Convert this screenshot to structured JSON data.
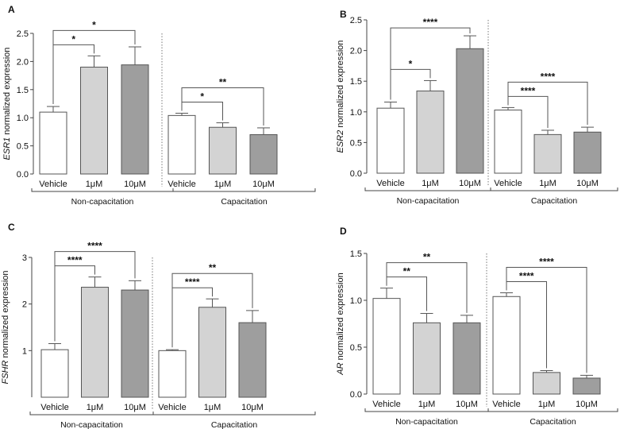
{
  "chart_data": [
    {
      "panel_label": "A",
      "type": "bar",
      "ylabel_gene": "ESR1",
      "ylabel_rest": " normalized expression",
      "yticks": [
        "0.0",
        "0.5",
        "1.0",
        "1.5",
        "2.0",
        "2.5"
      ],
      "ylim": [
        0,
        2.5
      ],
      "categories": [
        "Vehicle",
        "1μM",
        "10μM",
        "Vehicle",
        "1μM",
        "10μM"
      ],
      "values": [
        1.1,
        1.9,
        1.94,
        1.04,
        0.83,
        0.7
      ],
      "errors": [
        0.1,
        0.2,
        0.32,
        0.04,
        0.08,
        0.12
      ],
      "groups": [
        {
          "label": "Non-capacitation",
          "start": 0,
          "end": 2
        },
        {
          "label": "Capacitation",
          "start": 3,
          "end": 5
        }
      ],
      "significance": [
        {
          "from": 0,
          "to": 1,
          "label": "*"
        },
        {
          "from": 0,
          "to": 2,
          "label": "*"
        },
        {
          "from": 3,
          "to": 4,
          "label": "*"
        },
        {
          "from": 3,
          "to": 5,
          "label": "**"
        }
      ]
    },
    {
      "panel_label": "B",
      "type": "bar",
      "ylabel_gene": "ESR2",
      "ylabel_rest": " normalized expression",
      "yticks": [
        "0.0",
        "0.5",
        "1.0",
        "1.5",
        "2.0",
        "2.5"
      ],
      "ylim": [
        0,
        2.5
      ],
      "categories": [
        "Vehicle",
        "1μM",
        "10μM",
        "Vehicle",
        "1μM",
        "10μM"
      ],
      "values": [
        1.06,
        1.34,
        2.03,
        1.03,
        0.63,
        0.67
      ],
      "errors": [
        0.1,
        0.17,
        0.21,
        0.04,
        0.07,
        0.08
      ],
      "groups": [
        {
          "label": "Non-capacitation",
          "start": 0,
          "end": 2
        },
        {
          "label": "Capacitation",
          "start": 3,
          "end": 5
        }
      ],
      "significance": [
        {
          "from": 0,
          "to": 1,
          "label": "*"
        },
        {
          "from": 0,
          "to": 2,
          "label": "****"
        },
        {
          "from": 3,
          "to": 4,
          "label": "****"
        },
        {
          "from": 3,
          "to": 5,
          "label": "****"
        }
      ]
    },
    {
      "panel_label": "C",
      "type": "bar",
      "ylabel_gene": "FSHR",
      "ylabel_rest": " normalized expression",
      "yticks": [
        "1",
        "2",
        "3"
      ],
      "ytick_values": [
        1,
        2,
        3
      ],
      "ylim": [
        0,
        3
      ],
      "categories": [
        "Vehicle",
        "1μM",
        "10μM",
        "Vehicle",
        "1μM",
        "10μM"
      ],
      "values": [
        1.02,
        2.36,
        2.3,
        1.0,
        1.93,
        1.6
      ],
      "errors": [
        0.13,
        0.22,
        0.2,
        0.02,
        0.18,
        0.26
      ],
      "groups": [
        {
          "label": "Non-capacitation",
          "start": 0,
          "end": 2
        },
        {
          "label": "Capacitation",
          "start": 3,
          "end": 5
        }
      ],
      "significance": [
        {
          "from": 0,
          "to": 1,
          "label": "****"
        },
        {
          "from": 0,
          "to": 2,
          "label": "****"
        },
        {
          "from": 3,
          "to": 4,
          "label": "****"
        },
        {
          "from": 3,
          "to": 5,
          "label": "**"
        }
      ]
    },
    {
      "panel_label": "D",
      "type": "bar",
      "ylabel_gene": "AR",
      "ylabel_rest": " normalized expression",
      "yticks": [
        "0.0",
        "0.5",
        "1.0",
        "1.5"
      ],
      "ylim": [
        0,
        1.5
      ],
      "categories": [
        "Vehicle",
        "1μM",
        "10μM",
        "Vehicle",
        "1μM",
        "10μM"
      ],
      "values": [
        1.02,
        0.76,
        0.76,
        1.04,
        0.23,
        0.17
      ],
      "errors": [
        0.11,
        0.1,
        0.08,
        0.04,
        0.02,
        0.03
      ],
      "groups": [
        {
          "label": "Non-capacitation",
          "start": 0,
          "end": 2
        },
        {
          "label": "Capacitation",
          "start": 3,
          "end": 5
        }
      ],
      "significance": [
        {
          "from": 0,
          "to": 1,
          "label": "**"
        },
        {
          "from": 0,
          "to": 2,
          "label": "**"
        },
        {
          "from": 3,
          "to": 4,
          "label": "****"
        },
        {
          "from": 3,
          "to": 5,
          "label": "****"
        }
      ]
    }
  ],
  "colors": {
    "vehicle_fill": "#ffffff",
    "low_dose_fill": "#d3d3d3",
    "high_dose_fill": "#9e9e9e",
    "bar_stroke": "#555555",
    "axis": "#444444"
  }
}
